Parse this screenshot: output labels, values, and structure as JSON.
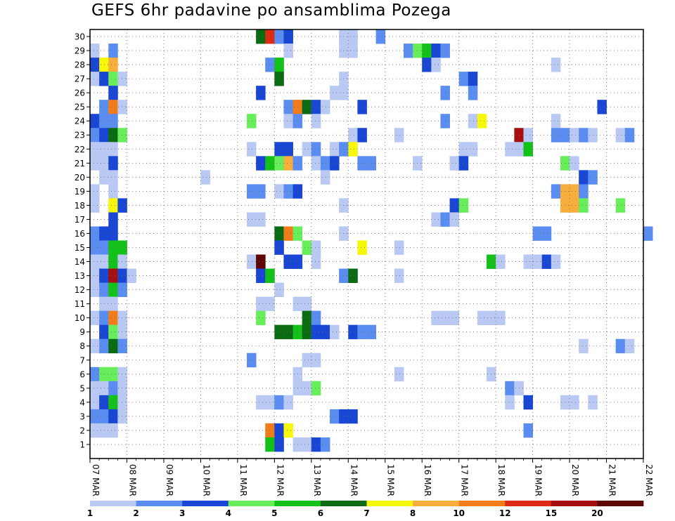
{
  "chart_data": {
    "type": "heatmap",
    "title": "GEFS 6hr padavine po ansamblima Pozega",
    "x_ticks": [
      "07 MAR",
      "08 MAR",
      "09 MAR",
      "10 MAR",
      "11 MAR",
      "12 MAR",
      "13 MAR",
      "14 MAR",
      "15 MAR",
      "16 MAR",
      "17 MAR",
      "18 MAR",
      "19 MAR",
      "20 MAR",
      "21 MAR",
      "22 MAR"
    ],
    "y_ticks": [
      1,
      2,
      3,
      4,
      5,
      6,
      7,
      8,
      9,
      10,
      11,
      12,
      13,
      14,
      15,
      16,
      17,
      18,
      19,
      20,
      21,
      22,
      23,
      24,
      25,
      26,
      27,
      28,
      29,
      30
    ],
    "x_steps_per_day": 4,
    "n_steps": 60,
    "colorbar": {
      "labels": [
        "1",
        "2",
        "3",
        "4",
        "5",
        "6",
        "7",
        "8",
        "10",
        "12",
        "15",
        "20"
      ],
      "colors": [
        "#b9c9f3",
        "#5b8df0",
        "#1947d4",
        "#67ee5a",
        "#14c11a",
        "#0b6b13",
        "#f7f70b",
        "#f8ae3c",
        "#f27c1a",
        "#dd2a13",
        "#a50f0f",
        "#5e0606"
      ]
    },
    "cells": [
      {
        "m": 30,
        "t": 18,
        "c": 5
      },
      {
        "m": 30,
        "t": 19,
        "c": 9
      },
      {
        "m": 30,
        "t": 20,
        "c": 1
      },
      {
        "m": 30,
        "t": 21,
        "c": 2
      },
      {
        "m": 30,
        "t": 27,
        "c": 0
      },
      {
        "m": 30,
        "t": 28,
        "c": 0
      },
      {
        "m": 30,
        "t": 31,
        "c": 1
      },
      {
        "m": 29,
        "t": 0,
        "c": 0
      },
      {
        "m": 29,
        "t": 2,
        "c": 1
      },
      {
        "m": 29,
        "t": 21,
        "c": 0
      },
      {
        "m": 29,
        "t": 27,
        "c": 0
      },
      {
        "m": 29,
        "t": 28,
        "c": 0
      },
      {
        "m": 29,
        "t": 34,
        "c": 1
      },
      {
        "m": 29,
        "t": 35,
        "c": 3
      },
      {
        "m": 29,
        "t": 36,
        "c": 4
      },
      {
        "m": 29,
        "t": 37,
        "c": 2
      },
      {
        "m": 29,
        "t": 38,
        "c": 1
      },
      {
        "m": 28,
        "t": 0,
        "c": 2
      },
      {
        "m": 28,
        "t": 1,
        "c": 6
      },
      {
        "m": 28,
        "t": 2,
        "c": 7
      },
      {
        "m": 28,
        "t": 19,
        "c": 1
      },
      {
        "m": 28,
        "t": 20,
        "c": 4
      },
      {
        "m": 28,
        "t": 36,
        "c": 2
      },
      {
        "m": 28,
        "t": 37,
        "c": 0
      },
      {
        "m": 28,
        "t": 50,
        "c": 0
      },
      {
        "m": 27,
        "t": 0,
        "c": 0
      },
      {
        "m": 27,
        "t": 1,
        "c": 2
      },
      {
        "m": 27,
        "t": 2,
        "c": 3
      },
      {
        "m": 27,
        "t": 3,
        "c": 0
      },
      {
        "m": 27,
        "t": 20,
        "c": 5
      },
      {
        "m": 27,
        "t": 27,
        "c": 0
      },
      {
        "m": 27,
        "t": 40,
        "c": 1
      },
      {
        "m": 27,
        "t": 41,
        "c": 2
      },
      {
        "m": 26,
        "t": 2,
        "c": 2
      },
      {
        "m": 26,
        "t": 18,
        "c": 2
      },
      {
        "m": 26,
        "t": 26,
        "c": 0
      },
      {
        "m": 26,
        "t": 27,
        "c": 0
      },
      {
        "m": 26,
        "t": 38,
        "c": 1
      },
      {
        "m": 26,
        "t": 41,
        "c": 1
      },
      {
        "m": 25,
        "t": 1,
        "c": 1
      },
      {
        "m": 25,
        "t": 2,
        "c": 8
      },
      {
        "m": 25,
        "t": 3,
        "c": 0
      },
      {
        "m": 25,
        "t": 21,
        "c": 1
      },
      {
        "m": 25,
        "t": 22,
        "c": 8
      },
      {
        "m": 25,
        "t": 23,
        "c": 5
      },
      {
        "m": 25,
        "t": 24,
        "c": 2
      },
      {
        "m": 25,
        "t": 25,
        "c": 0
      },
      {
        "m": 25,
        "t": 29,
        "c": 2
      },
      {
        "m": 25,
        "t": 55,
        "c": 2
      },
      {
        "m": 24,
        "t": 0,
        "c": 2
      },
      {
        "m": 24,
        "t": 1,
        "c": 1
      },
      {
        "m": 24,
        "t": 2,
        "c": 1
      },
      {
        "m": 24,
        "t": 17,
        "c": 3
      },
      {
        "m": 24,
        "t": 21,
        "c": 0
      },
      {
        "m": 24,
        "t": 22,
        "c": 1
      },
      {
        "m": 24,
        "t": 24,
        "c": 0
      },
      {
        "m": 24,
        "t": 38,
        "c": 1
      },
      {
        "m": 24,
        "t": 41,
        "c": 0
      },
      {
        "m": 24,
        "t": 42,
        "c": 6
      },
      {
        "m": 24,
        "t": 50,
        "c": 0
      },
      {
        "m": 23,
        "t": 0,
        "c": 1
      },
      {
        "m": 23,
        "t": 1,
        "c": 2
      },
      {
        "m": 23,
        "t": 2,
        "c": 5
      },
      {
        "m": 23,
        "t": 3,
        "c": 3
      },
      {
        "m": 23,
        "t": 28,
        "c": 0
      },
      {
        "m": 23,
        "t": 29,
        "c": 2
      },
      {
        "m": 23,
        "t": 33,
        "c": 0
      },
      {
        "m": 23,
        "t": 46,
        "c": 10
      },
      {
        "m": 23,
        "t": 47,
        "c": 0
      },
      {
        "m": 23,
        "t": 50,
        "c": 1
      },
      {
        "m": 23,
        "t": 51,
        "c": 1
      },
      {
        "m": 23,
        "t": 52,
        "c": 0
      },
      {
        "m": 23,
        "t": 53,
        "c": 1
      },
      {
        "m": 23,
        "t": 54,
        "c": 0
      },
      {
        "m": 23,
        "t": 57,
        "c": 0
      },
      {
        "m": 23,
        "t": 58,
        "c": 1
      },
      {
        "m": 22,
        "t": 0,
        "c": 0
      },
      {
        "m": 22,
        "t": 1,
        "c": 0
      },
      {
        "m": 22,
        "t": 2,
        "c": 0
      },
      {
        "m": 22,
        "t": 17,
        "c": 0
      },
      {
        "m": 22,
        "t": 20,
        "c": 2
      },
      {
        "m": 22,
        "t": 21,
        "c": 2
      },
      {
        "m": 22,
        "t": 23,
        "c": 0
      },
      {
        "m": 22,
        "t": 24,
        "c": 1
      },
      {
        "m": 22,
        "t": 26,
        "c": 0
      },
      {
        "m": 22,
        "t": 27,
        "c": 1
      },
      {
        "m": 22,
        "t": 28,
        "c": 6
      },
      {
        "m": 22,
        "t": 40,
        "c": 0
      },
      {
        "m": 22,
        "t": 41,
        "c": 0
      },
      {
        "m": 22,
        "t": 45,
        "c": 0
      },
      {
        "m": 22,
        "t": 46,
        "c": 0
      },
      {
        "m": 22,
        "t": 47,
        "c": 4
      },
      {
        "m": 21,
        "t": 0,
        "c": 0
      },
      {
        "m": 21,
        "t": 1,
        "c": 0
      },
      {
        "m": 21,
        "t": 2,
        "c": 2
      },
      {
        "m": 21,
        "t": 18,
        "c": 2
      },
      {
        "m": 21,
        "t": 19,
        "c": 4
      },
      {
        "m": 21,
        "t": 20,
        "c": 3
      },
      {
        "m": 21,
        "t": 21,
        "c": 7
      },
      {
        "m": 21,
        "t": 22,
        "c": 1
      },
      {
        "m": 21,
        "t": 24,
        "c": 0
      },
      {
        "m": 21,
        "t": 25,
        "c": 1
      },
      {
        "m": 21,
        "t": 26,
        "c": 2
      },
      {
        "m": 21,
        "t": 29,
        "c": 1
      },
      {
        "m": 21,
        "t": 30,
        "c": 1
      },
      {
        "m": 21,
        "t": 35,
        "c": 0
      },
      {
        "m": 21,
        "t": 39,
        "c": 0
      },
      {
        "m": 21,
        "t": 40,
        "c": 2
      },
      {
        "m": 21,
        "t": 51,
        "c": 3
      },
      {
        "m": 21,
        "t": 52,
        "c": 0
      },
      {
        "m": 20,
        "t": 1,
        "c": 0
      },
      {
        "m": 20,
        "t": 2,
        "c": 0
      },
      {
        "m": 20,
        "t": 12,
        "c": 0
      },
      {
        "m": 20,
        "t": 25,
        "c": 0
      },
      {
        "m": 20,
        "t": 53,
        "c": 2
      },
      {
        "m": 20,
        "t": 54,
        "c": 1
      },
      {
        "m": 19,
        "t": 0,
        "c": 0
      },
      {
        "m": 19,
        "t": 2,
        "c": 0
      },
      {
        "m": 19,
        "t": 17,
        "c": 1
      },
      {
        "m": 19,
        "t": 18,
        "c": 1
      },
      {
        "m": 19,
        "t": 20,
        "c": 0
      },
      {
        "m": 19,
        "t": 21,
        "c": 1
      },
      {
        "m": 19,
        "t": 22,
        "c": 2
      },
      {
        "m": 19,
        "t": 50,
        "c": 1
      },
      {
        "m": 19,
        "t": 51,
        "c": 7
      },
      {
        "m": 19,
        "t": 52,
        "c": 7
      },
      {
        "m": 19,
        "t": 53,
        "c": 1
      },
      {
        "m": 18,
        "t": 0,
        "c": 0
      },
      {
        "m": 18,
        "t": 2,
        "c": 6
      },
      {
        "m": 18,
        "t": 3,
        "c": 2
      },
      {
        "m": 18,
        "t": 27,
        "c": 0
      },
      {
        "m": 18,
        "t": 39,
        "c": 2
      },
      {
        "m": 18,
        "t": 40,
        "c": 3
      },
      {
        "m": 18,
        "t": 51,
        "c": 7
      },
      {
        "m": 18,
        "t": 52,
        "c": 7
      },
      {
        "m": 18,
        "t": 53,
        "c": 3
      },
      {
        "m": 18,
        "t": 57,
        "c": 3
      },
      {
        "m": 17,
        "t": 2,
        "c": 2
      },
      {
        "m": 17,
        "t": 17,
        "c": 0
      },
      {
        "m": 17,
        "t": 18,
        "c": 0
      },
      {
        "m": 17,
        "t": 37,
        "c": 0
      },
      {
        "m": 17,
        "t": 38,
        "c": 1
      },
      {
        "m": 17,
        "t": 39,
        "c": 0
      },
      {
        "m": 16,
        "t": 0,
        "c": 1
      },
      {
        "m": 16,
        "t": 1,
        "c": 2
      },
      {
        "m": 16,
        "t": 2,
        "c": 2
      },
      {
        "m": 16,
        "t": 20,
        "c": 5
      },
      {
        "m": 16,
        "t": 21,
        "c": 8
      },
      {
        "m": 16,
        "t": 22,
        "c": 3
      },
      {
        "m": 16,
        "t": 27,
        "c": 0
      },
      {
        "m": 16,
        "t": 48,
        "c": 1
      },
      {
        "m": 16,
        "t": 49,
        "c": 1
      },
      {
        "m": 16,
        "t": 60,
        "c": 1
      },
      {
        "m": 15,
        "t": 0,
        "c": 1
      },
      {
        "m": 15,
        "t": 1,
        "c": 1
      },
      {
        "m": 15,
        "t": 2,
        "c": 4
      },
      {
        "m": 15,
        "t": 3,
        "c": 4
      },
      {
        "m": 15,
        "t": 20,
        "c": 2
      },
      {
        "m": 15,
        "t": 23,
        "c": 3
      },
      {
        "m": 15,
        "t": 24,
        "c": 0
      },
      {
        "m": 15,
        "t": 29,
        "c": 6
      },
      {
        "m": 15,
        "t": 33,
        "c": 0
      },
      {
        "m": 14,
        "t": 0,
        "c": 0
      },
      {
        "m": 14,
        "t": 1,
        "c": 0
      },
      {
        "m": 14,
        "t": 2,
        "c": 4
      },
      {
        "m": 14,
        "t": 3,
        "c": 0
      },
      {
        "m": 14,
        "t": 17,
        "c": 0
      },
      {
        "m": 14,
        "t": 18,
        "c": 11
      },
      {
        "m": 14,
        "t": 21,
        "c": 2
      },
      {
        "m": 14,
        "t": 22,
        "c": 2
      },
      {
        "m": 14,
        "t": 24,
        "c": 0
      },
      {
        "m": 14,
        "t": 43,
        "c": 4
      },
      {
        "m": 14,
        "t": 44,
        "c": 0
      },
      {
        "m": 14,
        "t": 47,
        "c": 0
      },
      {
        "m": 14,
        "t": 48,
        "c": 0
      },
      {
        "m": 14,
        "t": 49,
        "c": 2
      },
      {
        "m": 14,
        "t": 50,
        "c": 0
      },
      {
        "m": 13,
        "t": 0,
        "c": 0
      },
      {
        "m": 13,
        "t": 1,
        "c": 2
      },
      {
        "m": 13,
        "t": 2,
        "c": 10
      },
      {
        "m": 13,
        "t": 3,
        "c": 2
      },
      {
        "m": 13,
        "t": 4,
        "c": 0
      },
      {
        "m": 13,
        "t": 18,
        "c": 2
      },
      {
        "m": 13,
        "t": 19,
        "c": 4
      },
      {
        "m": 13,
        "t": 27,
        "c": 1
      },
      {
        "m": 13,
        "t": 28,
        "c": 5
      },
      {
        "m": 13,
        "t": 33,
        "c": 0
      },
      {
        "m": 12,
        "t": 0,
        "c": 0
      },
      {
        "m": 12,
        "t": 1,
        "c": 1
      },
      {
        "m": 12,
        "t": 2,
        "c": 4
      },
      {
        "m": 12,
        "t": 3,
        "c": 1
      },
      {
        "m": 12,
        "t": 20,
        "c": 0
      },
      {
        "m": 11,
        "t": 1,
        "c": 0
      },
      {
        "m": 11,
        "t": 2,
        "c": 0
      },
      {
        "m": 11,
        "t": 18,
        "c": 0
      },
      {
        "m": 11,
        "t": 19,
        "c": 0
      },
      {
        "m": 11,
        "t": 22,
        "c": 0
      },
      {
        "m": 11,
        "t": 23,
        "c": 0
      },
      {
        "m": 10,
        "t": 0,
        "c": 0
      },
      {
        "m": 10,
        "t": 1,
        "c": 1
      },
      {
        "m": 10,
        "t": 2,
        "c": 8
      },
      {
        "m": 10,
        "t": 3,
        "c": 0
      },
      {
        "m": 10,
        "t": 18,
        "c": 3
      },
      {
        "m": 10,
        "t": 23,
        "c": 5
      },
      {
        "m": 10,
        "t": 24,
        "c": 1
      },
      {
        "m": 10,
        "t": 37,
        "c": 0
      },
      {
        "m": 10,
        "t": 38,
        "c": 0
      },
      {
        "m": 10,
        "t": 39,
        "c": 0
      },
      {
        "m": 10,
        "t": 42,
        "c": 0
      },
      {
        "m": 10,
        "t": 43,
        "c": 0
      },
      {
        "m": 10,
        "t": 44,
        "c": 0
      },
      {
        "m": 9,
        "t": 1,
        "c": 2
      },
      {
        "m": 9,
        "t": 2,
        "c": 3
      },
      {
        "m": 9,
        "t": 3,
        "c": 0
      },
      {
        "m": 9,
        "t": 20,
        "c": 5
      },
      {
        "m": 9,
        "t": 21,
        "c": 5
      },
      {
        "m": 9,
        "t": 22,
        "c": 4
      },
      {
        "m": 9,
        "t": 23,
        "c": 5
      },
      {
        "m": 9,
        "t": 24,
        "c": 2
      },
      {
        "m": 9,
        "t": 25,
        "c": 2
      },
      {
        "m": 9,
        "t": 26,
        "c": 0
      },
      {
        "m": 9,
        "t": 28,
        "c": 2
      },
      {
        "m": 9,
        "t": 29,
        "c": 1
      },
      {
        "m": 9,
        "t": 30,
        "c": 1
      },
      {
        "m": 8,
        "t": 0,
        "c": 0
      },
      {
        "m": 8,
        "t": 1,
        "c": 1
      },
      {
        "m": 8,
        "t": 2,
        "c": 5
      },
      {
        "m": 8,
        "t": 3,
        "c": 1
      },
      {
        "m": 8,
        "t": 53,
        "c": 0
      },
      {
        "m": 8,
        "t": 57,
        "c": 1
      },
      {
        "m": 8,
        "t": 58,
        "c": 0
      },
      {
        "m": 7,
        "t": 17,
        "c": 1
      },
      {
        "m": 7,
        "t": 23,
        "c": 0
      },
      {
        "m": 7,
        "t": 24,
        "c": 0
      },
      {
        "m": 6,
        "t": 0,
        "c": 1
      },
      {
        "m": 6,
        "t": 1,
        "c": 3
      },
      {
        "m": 6,
        "t": 2,
        "c": 3
      },
      {
        "m": 6,
        "t": 3,
        "c": 0
      },
      {
        "m": 6,
        "t": 22,
        "c": 0
      },
      {
        "m": 6,
        "t": 33,
        "c": 0
      },
      {
        "m": 6,
        "t": 43,
        "c": 0
      },
      {
        "m": 5,
        "t": 0,
        "c": 0
      },
      {
        "m": 5,
        "t": 1,
        "c": 0
      },
      {
        "m": 5,
        "t": 2,
        "c": 1
      },
      {
        "m": 5,
        "t": 3,
        "c": 0
      },
      {
        "m": 5,
        "t": 22,
        "c": 0
      },
      {
        "m": 5,
        "t": 23,
        "c": 0
      },
      {
        "m": 5,
        "t": 24,
        "c": 3
      },
      {
        "m": 5,
        "t": 45,
        "c": 1
      },
      {
        "m": 5,
        "t": 46,
        "c": 0
      },
      {
        "m": 4,
        "t": 0,
        "c": 0
      },
      {
        "m": 4,
        "t": 1,
        "c": 2
      },
      {
        "m": 4,
        "t": 2,
        "c": 4
      },
      {
        "m": 4,
        "t": 3,
        "c": 0
      },
      {
        "m": 4,
        "t": 18,
        "c": 0
      },
      {
        "m": 4,
        "t": 19,
        "c": 0
      },
      {
        "m": 4,
        "t": 20,
        "c": 1
      },
      {
        "m": 4,
        "t": 21,
        "c": 0
      },
      {
        "m": 4,
        "t": 45,
        "c": 0
      },
      {
        "m": 4,
        "t": 47,
        "c": 2
      },
      {
        "m": 4,
        "t": 51,
        "c": 0
      },
      {
        "m": 4,
        "t": 52,
        "c": 0
      },
      {
        "m": 4,
        "t": 54,
        "c": 0
      },
      {
        "m": 3,
        "t": 0,
        "c": 1
      },
      {
        "m": 3,
        "t": 1,
        "c": 1
      },
      {
        "m": 3,
        "t": 2,
        "c": 2
      },
      {
        "m": 3,
        "t": 3,
        "c": 0
      },
      {
        "m": 3,
        "t": 26,
        "c": 1
      },
      {
        "m": 3,
        "t": 27,
        "c": 2
      },
      {
        "m": 3,
        "t": 28,
        "c": 2
      },
      {
        "m": 2,
        "t": 0,
        "c": 0
      },
      {
        "m": 2,
        "t": 1,
        "c": 0
      },
      {
        "m": 2,
        "t": 2,
        "c": 0
      },
      {
        "m": 2,
        "t": 19,
        "c": 8
      },
      {
        "m": 2,
        "t": 20,
        "c": 2
      },
      {
        "m": 2,
        "t": 21,
        "c": 6
      },
      {
        "m": 2,
        "t": 47,
        "c": 1
      },
      {
        "m": 1,
        "t": 19,
        "c": 4
      },
      {
        "m": 1,
        "t": 20,
        "c": 2
      },
      {
        "m": 1,
        "t": 22,
        "c": 0
      },
      {
        "m": 1,
        "t": 23,
        "c": 0
      },
      {
        "m": 1,
        "t": 24,
        "c": 2
      },
      {
        "m": 1,
        "t": 25,
        "c": 1
      }
    ]
  }
}
